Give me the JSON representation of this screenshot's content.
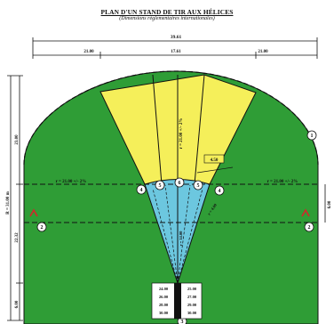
{
  "title": "PLAN D'UN STAND DE TIR AUX HÉLICES",
  "subtitle": "(Dimensions réglementaires internationales)",
  "dimensions": {
    "total_width": "39.61",
    "left_segment": "21.00",
    "middle_segment": "17.61",
    "right_segment": "21.00",
    "left_upper": "23.00",
    "left_middle": "22.32",
    "left_lower": "6.00",
    "overall_radius": "R = 31.00 m",
    "right_offset": "6.00",
    "sector_radius": "r = 21.00 +/- 2%",
    "side_radius_left": "r = 21.00 +/- 2%",
    "side_radius_right": "r = 21.00 +/- 2%",
    "sector_width": "4.50",
    "blue_radius": "r = 4.00",
    "centre_radius": "r = 14.00"
  },
  "stations": {
    "left_column": [
      "24.00",
      "26.00",
      "28.00",
      "30.00"
    ],
    "right_column": [
      "25.00",
      "27.00",
      "29.00",
      "30.00"
    ]
  },
  "markers": [
    "1",
    "2",
    "3",
    "4",
    "5",
    "6"
  ],
  "colors": {
    "field": "#2f9d36",
    "sectors": "#f5ef5a",
    "centre": "#6cc7df",
    "lines": "#111111",
    "flag": "#d6242a"
  }
}
